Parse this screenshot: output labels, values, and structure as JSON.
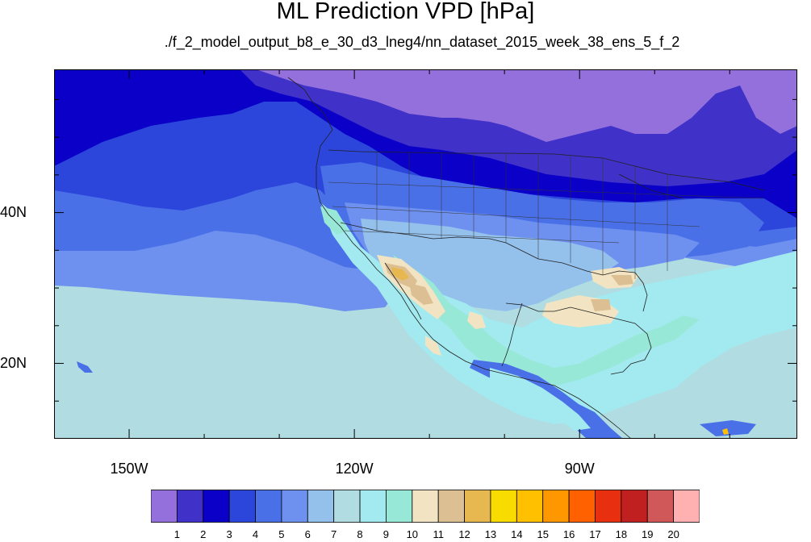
{
  "figure": {
    "title": "ML Prediction VPD [hPa]",
    "subtitle": "./f_2_model_output_b8_e_30_d3_lneg4/nn_dataset_2015_week_38_ens_5_f_2"
  },
  "map": {
    "projection": "cylindrical-equidistant",
    "lon_range": [
      -160,
      -61
    ],
    "lat_range": [
      10,
      59
    ],
    "lon_ticks": [
      {
        "value": -150,
        "label": "150W"
      },
      {
        "value": -120,
        "label": "120W"
      },
      {
        "value": -90,
        "label": "90W"
      }
    ],
    "lat_ticks": [
      {
        "value": 40,
        "label": "40N"
      },
      {
        "value": 20,
        "label": "20N"
      }
    ],
    "minor_lon_ticks": [
      -140,
      -130,
      -110,
      -100,
      -80,
      -70
    ],
    "minor_lat_ticks": [
      15,
      25,
      30,
      35,
      45,
      50,
      55
    ]
  },
  "colorbar": {
    "labels": [
      "1",
      "2",
      "3",
      "4",
      "5",
      "6",
      "7",
      "8",
      "9",
      "10",
      "11",
      "12",
      "13",
      "14",
      "15",
      "16",
      "17",
      "18",
      "19",
      "20"
    ],
    "colors": [
      "#9370db",
      "#4032c8",
      "#0a00c8",
      "#2c46dc",
      "#4a70e8",
      "#6e90ee",
      "#94c0ec",
      "#b0dce2",
      "#a2eaf0",
      "#98e8d8",
      "#f2e4c2",
      "#dcc094",
      "#e8b850",
      "#f8dc00",
      "#ffc000",
      "#ff9800",
      "#ff6000",
      "#e83010",
      "#c02020",
      "#d05858",
      "#ffb0b0"
    ]
  }
}
